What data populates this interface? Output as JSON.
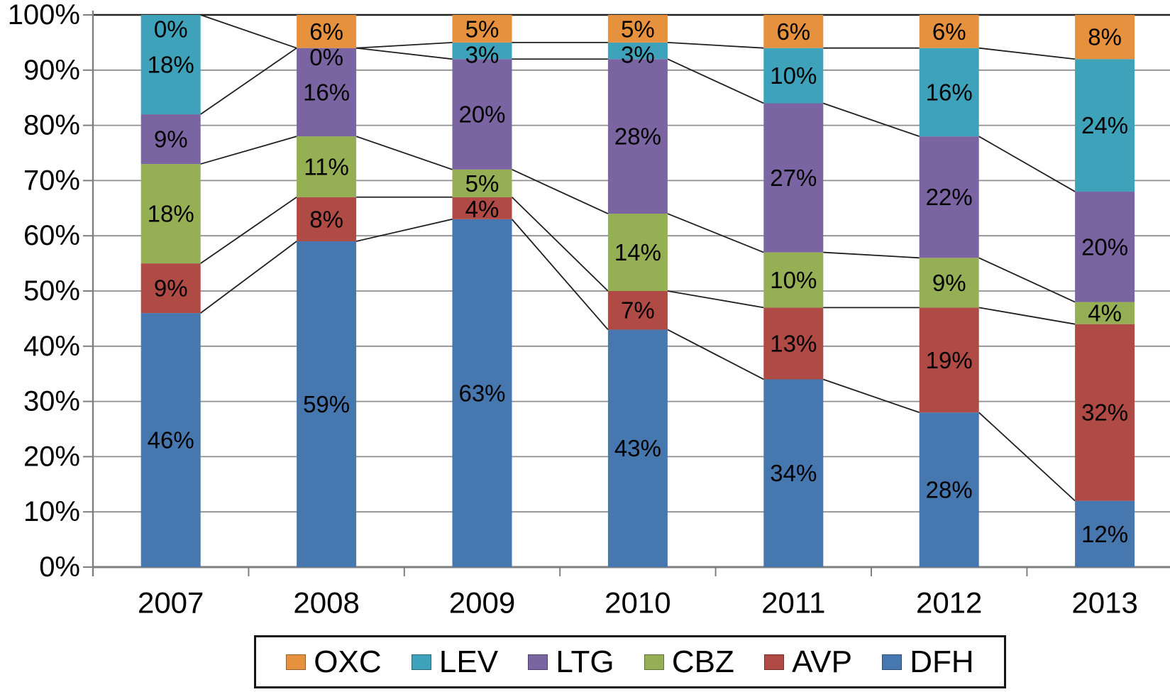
{
  "chart_data": {
    "type": "bar",
    "subtype": "stacked-100-percent-column",
    "title": "",
    "xlabel": "",
    "ylabel": "",
    "background": "#FFFFFF",
    "grid": true,
    "connector_lines": true,
    "data_label_format": "{value}%",
    "categories": [
      "2007",
      "2008",
      "2009",
      "2010",
      "2011",
      "2012",
      "2013"
    ],
    "series": [
      {
        "name": "DFH",
        "color": "#4677AE",
        "values": [
          46,
          59,
          63,
          43,
          34,
          28,
          12
        ]
      },
      {
        "name": "AVP",
        "color": "#AF4A45",
        "values": [
          9,
          8,
          4,
          7,
          13,
          19,
          32
        ]
      },
      {
        "name": "CBZ",
        "color": "#94AF54",
        "values": [
          18,
          11,
          5,
          14,
          10,
          9,
          4
        ]
      },
      {
        "name": "LTG",
        "color": "#7B64A2",
        "values": [
          9,
          16,
          20,
          28,
          27,
          22,
          20
        ]
      },
      {
        "name": "LEV",
        "color": "#3DA2BA",
        "values": [
          18,
          0,
          3,
          3,
          10,
          16,
          24
        ]
      },
      {
        "name": "OXC",
        "color": "#E6913E",
        "values": [
          0,
          6,
          5,
          5,
          6,
          6,
          8
        ]
      }
    ],
    "stack_order_bottom_to_top": [
      "DFH",
      "AVP",
      "CBZ",
      "LTG",
      "LEV",
      "OXC"
    ],
    "y_axis": {
      "min": 0,
      "max": 100,
      "ticks": [
        "0%",
        "10%",
        "20%",
        "30%",
        "40%",
        "50%",
        "60%",
        "70%",
        "80%",
        "90%",
        "100%"
      ]
    },
    "legend": {
      "position": "bottom",
      "border": true,
      "order": [
        "OXC",
        "LEV",
        "LTG",
        "CBZ",
        "AVP",
        "DFH"
      ]
    },
    "colors": {
      "gridline": "#8F8F8F",
      "top_line": "#262626",
      "axis_line": "#7F7F7F",
      "connector_line": "#1F1F1F",
      "label_text": "#000000"
    }
  }
}
